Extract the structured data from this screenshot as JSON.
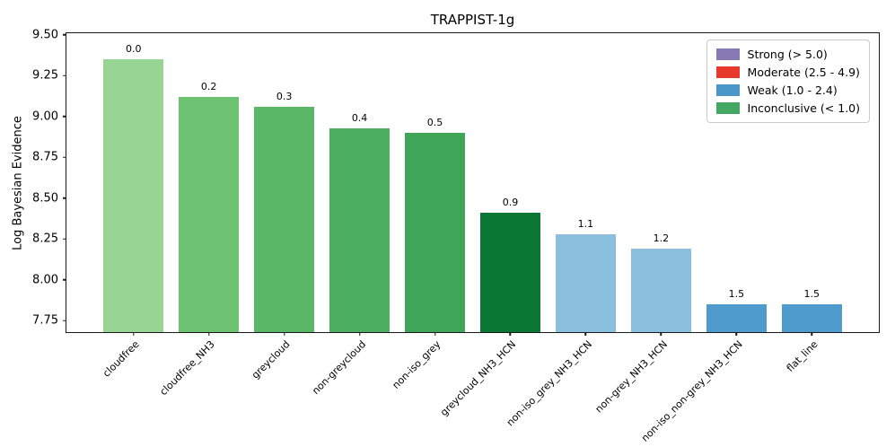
{
  "chart_data": {
    "type": "bar",
    "title": "TRAPPIST-1g",
    "xlabel": "",
    "ylabel": "Log Bayesian Evidence",
    "categories": [
      "cloudfree",
      "cloudfree_NH3",
      "greycloud",
      "non-greycloud",
      "non-iso_grey",
      "greycloud_NH3_HCN",
      "non-iso_grey_NH3_HCN",
      "non-grey_NH3_HCN",
      "non-iso_non-grey_NH3_HCN",
      "flat_line"
    ],
    "values": [
      9.35,
      9.12,
      9.06,
      8.93,
      8.9,
      8.41,
      8.28,
      8.19,
      7.85,
      7.85
    ],
    "bar_labels": [
      "0.0",
      "0.2",
      "0.3",
      "0.4",
      "0.5",
      "0.9",
      "1.1",
      "1.2",
      "1.5",
      "1.5"
    ],
    "bar_colors": [
      "#98d494",
      "#6dc272",
      "#5bb768",
      "#4bae60",
      "#3fa559",
      "#0a7634",
      "#8abfdd",
      "#8abfdd",
      "#4f9bce",
      "#4f9bce"
    ],
    "ylim": [
      7.68,
      9.51
    ],
    "xlim": [
      -0.89,
      9.89
    ],
    "bar_width": 0.8,
    "yticks": [
      9.5,
      9.25,
      9.0,
      8.75,
      8.5,
      8.25,
      8.0,
      7.75
    ],
    "grid": false,
    "legend": {
      "position": "upper right",
      "entries": [
        {
          "label": "Strong (> 5.0)",
          "color": "#8878b4"
        },
        {
          "label": "Moderate (2.5 - 4.9)",
          "color": "#e8392d"
        },
        {
          "label": "Weak (1.0 - 2.4)",
          "color": "#4a96c8"
        },
        {
          "label": "Inconclusive (< 1.0)",
          "color": "#43a863"
        }
      ]
    }
  }
}
